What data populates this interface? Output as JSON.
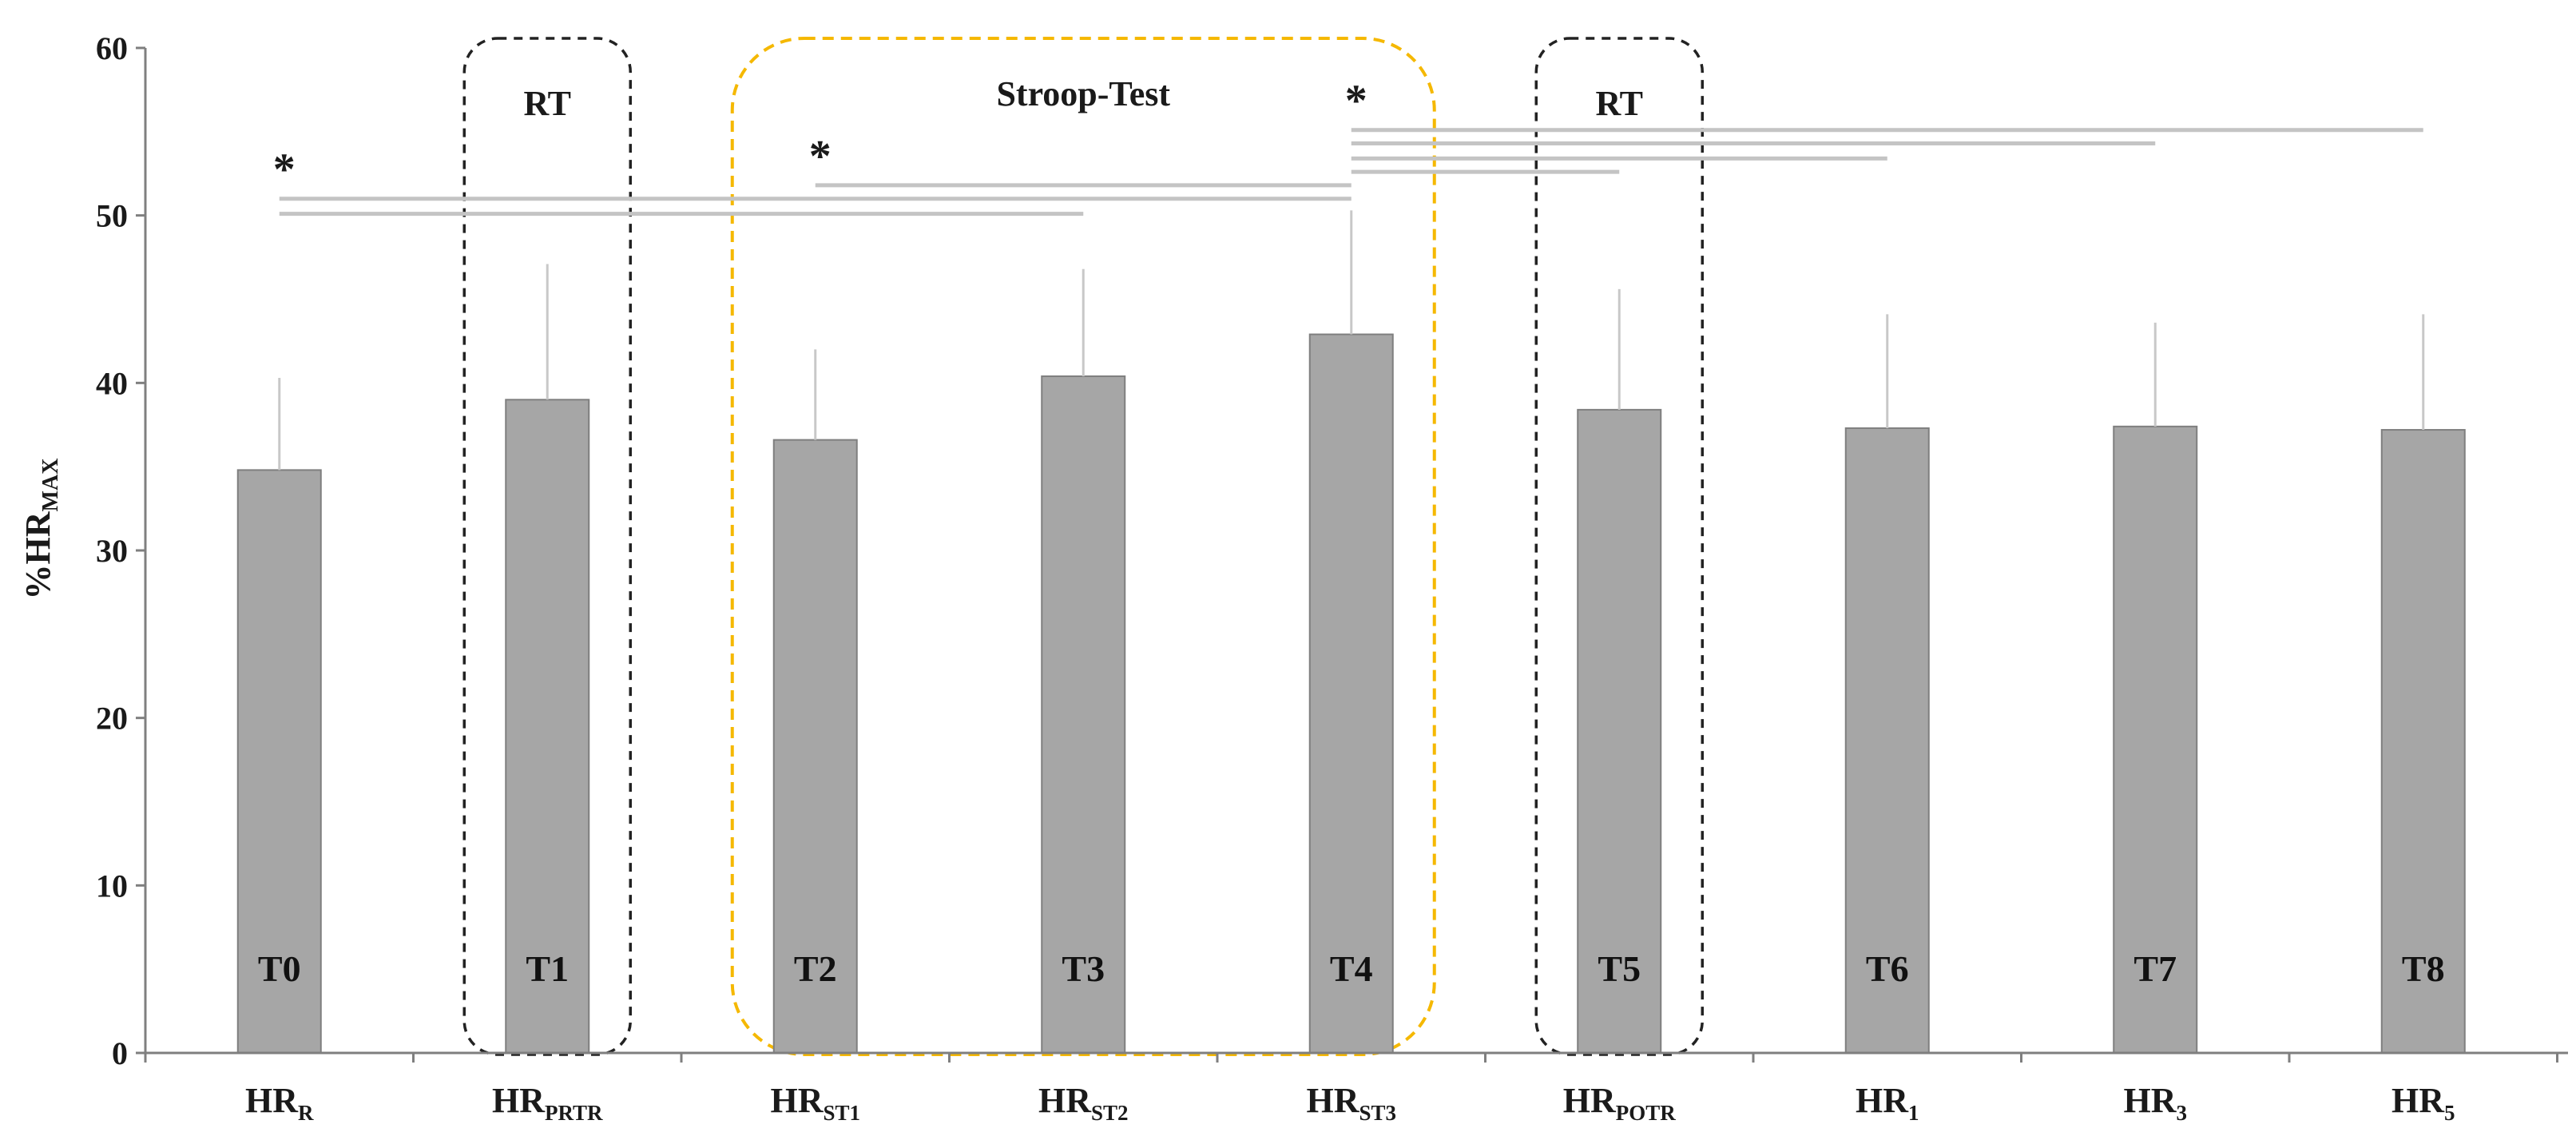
{
  "chart_data": {
    "type": "bar",
    "title": "",
    "xlabel": "",
    "ylabel": {
      "main": "%HR",
      "sub": "MAX"
    },
    "ylim": [
      0,
      60
    ],
    "yticks": [
      0,
      10,
      20,
      30,
      40,
      50,
      60
    ],
    "grid": false,
    "colors": {
      "bar": "#a6a6a6",
      "bar_edge": "#7f7f7f",
      "error": "#c8c8c8",
      "sig_line": "#c4c4c4",
      "rt_box": "#222222",
      "stroop_box": "#f5b800",
      "axis": "#7f7f7f"
    },
    "categories": [
      {
        "main": "HR",
        "sub": "R"
      },
      {
        "main": "HR",
        "sub": "PRTR"
      },
      {
        "main": "HR",
        "sub": "ST1"
      },
      {
        "main": "HR",
        "sub": "ST2"
      },
      {
        "main": "HR",
        "sub": "ST3"
      },
      {
        "main": "HR",
        "sub": "POTR"
      },
      {
        "main": "HR",
        "sub": "1"
      },
      {
        "main": "HR",
        "sub": "3"
      },
      {
        "main": "HR",
        "sub": "5"
      }
    ],
    "time_labels": [
      "T0",
      "T1",
      "T2",
      "T3",
      "T4",
      "T5",
      "T6",
      "T7",
      "T8"
    ],
    "values": [
      34.8,
      39.0,
      36.6,
      40.4,
      42.9,
      38.4,
      37.3,
      37.4,
      37.2
    ],
    "error_upper": [
      40.3,
      47.1,
      42.0,
      46.8,
      50.3,
      45.6,
      44.1,
      43.6,
      44.1
    ],
    "groups": [
      {
        "label": "RT",
        "from": 1,
        "to": 1,
        "style": "rt"
      },
      {
        "label": "Stroop-Test",
        "from": 2,
        "to": 4,
        "style": "stroop"
      },
      {
        "label": "RT",
        "from": 5,
        "to": 5,
        "style": "rt"
      }
    ],
    "significance": [
      {
        "from": 0,
        "to": 4,
        "y": 51.0,
        "star": true
      },
      {
        "from": 0,
        "to": 3,
        "y": 50.1,
        "star": false
      },
      {
        "from": 2,
        "to": 4,
        "y": 51.8,
        "star": true
      },
      {
        "from": 4,
        "to": 8,
        "y": 55.1,
        "star": true
      },
      {
        "from": 4,
        "to": 7,
        "y": 54.3,
        "star": false
      },
      {
        "from": 4,
        "to": 6,
        "y": 53.4,
        "star": false
      },
      {
        "from": 4,
        "to": 5,
        "y": 52.6,
        "star": false
      }
    ],
    "star_symbol": "*"
  }
}
